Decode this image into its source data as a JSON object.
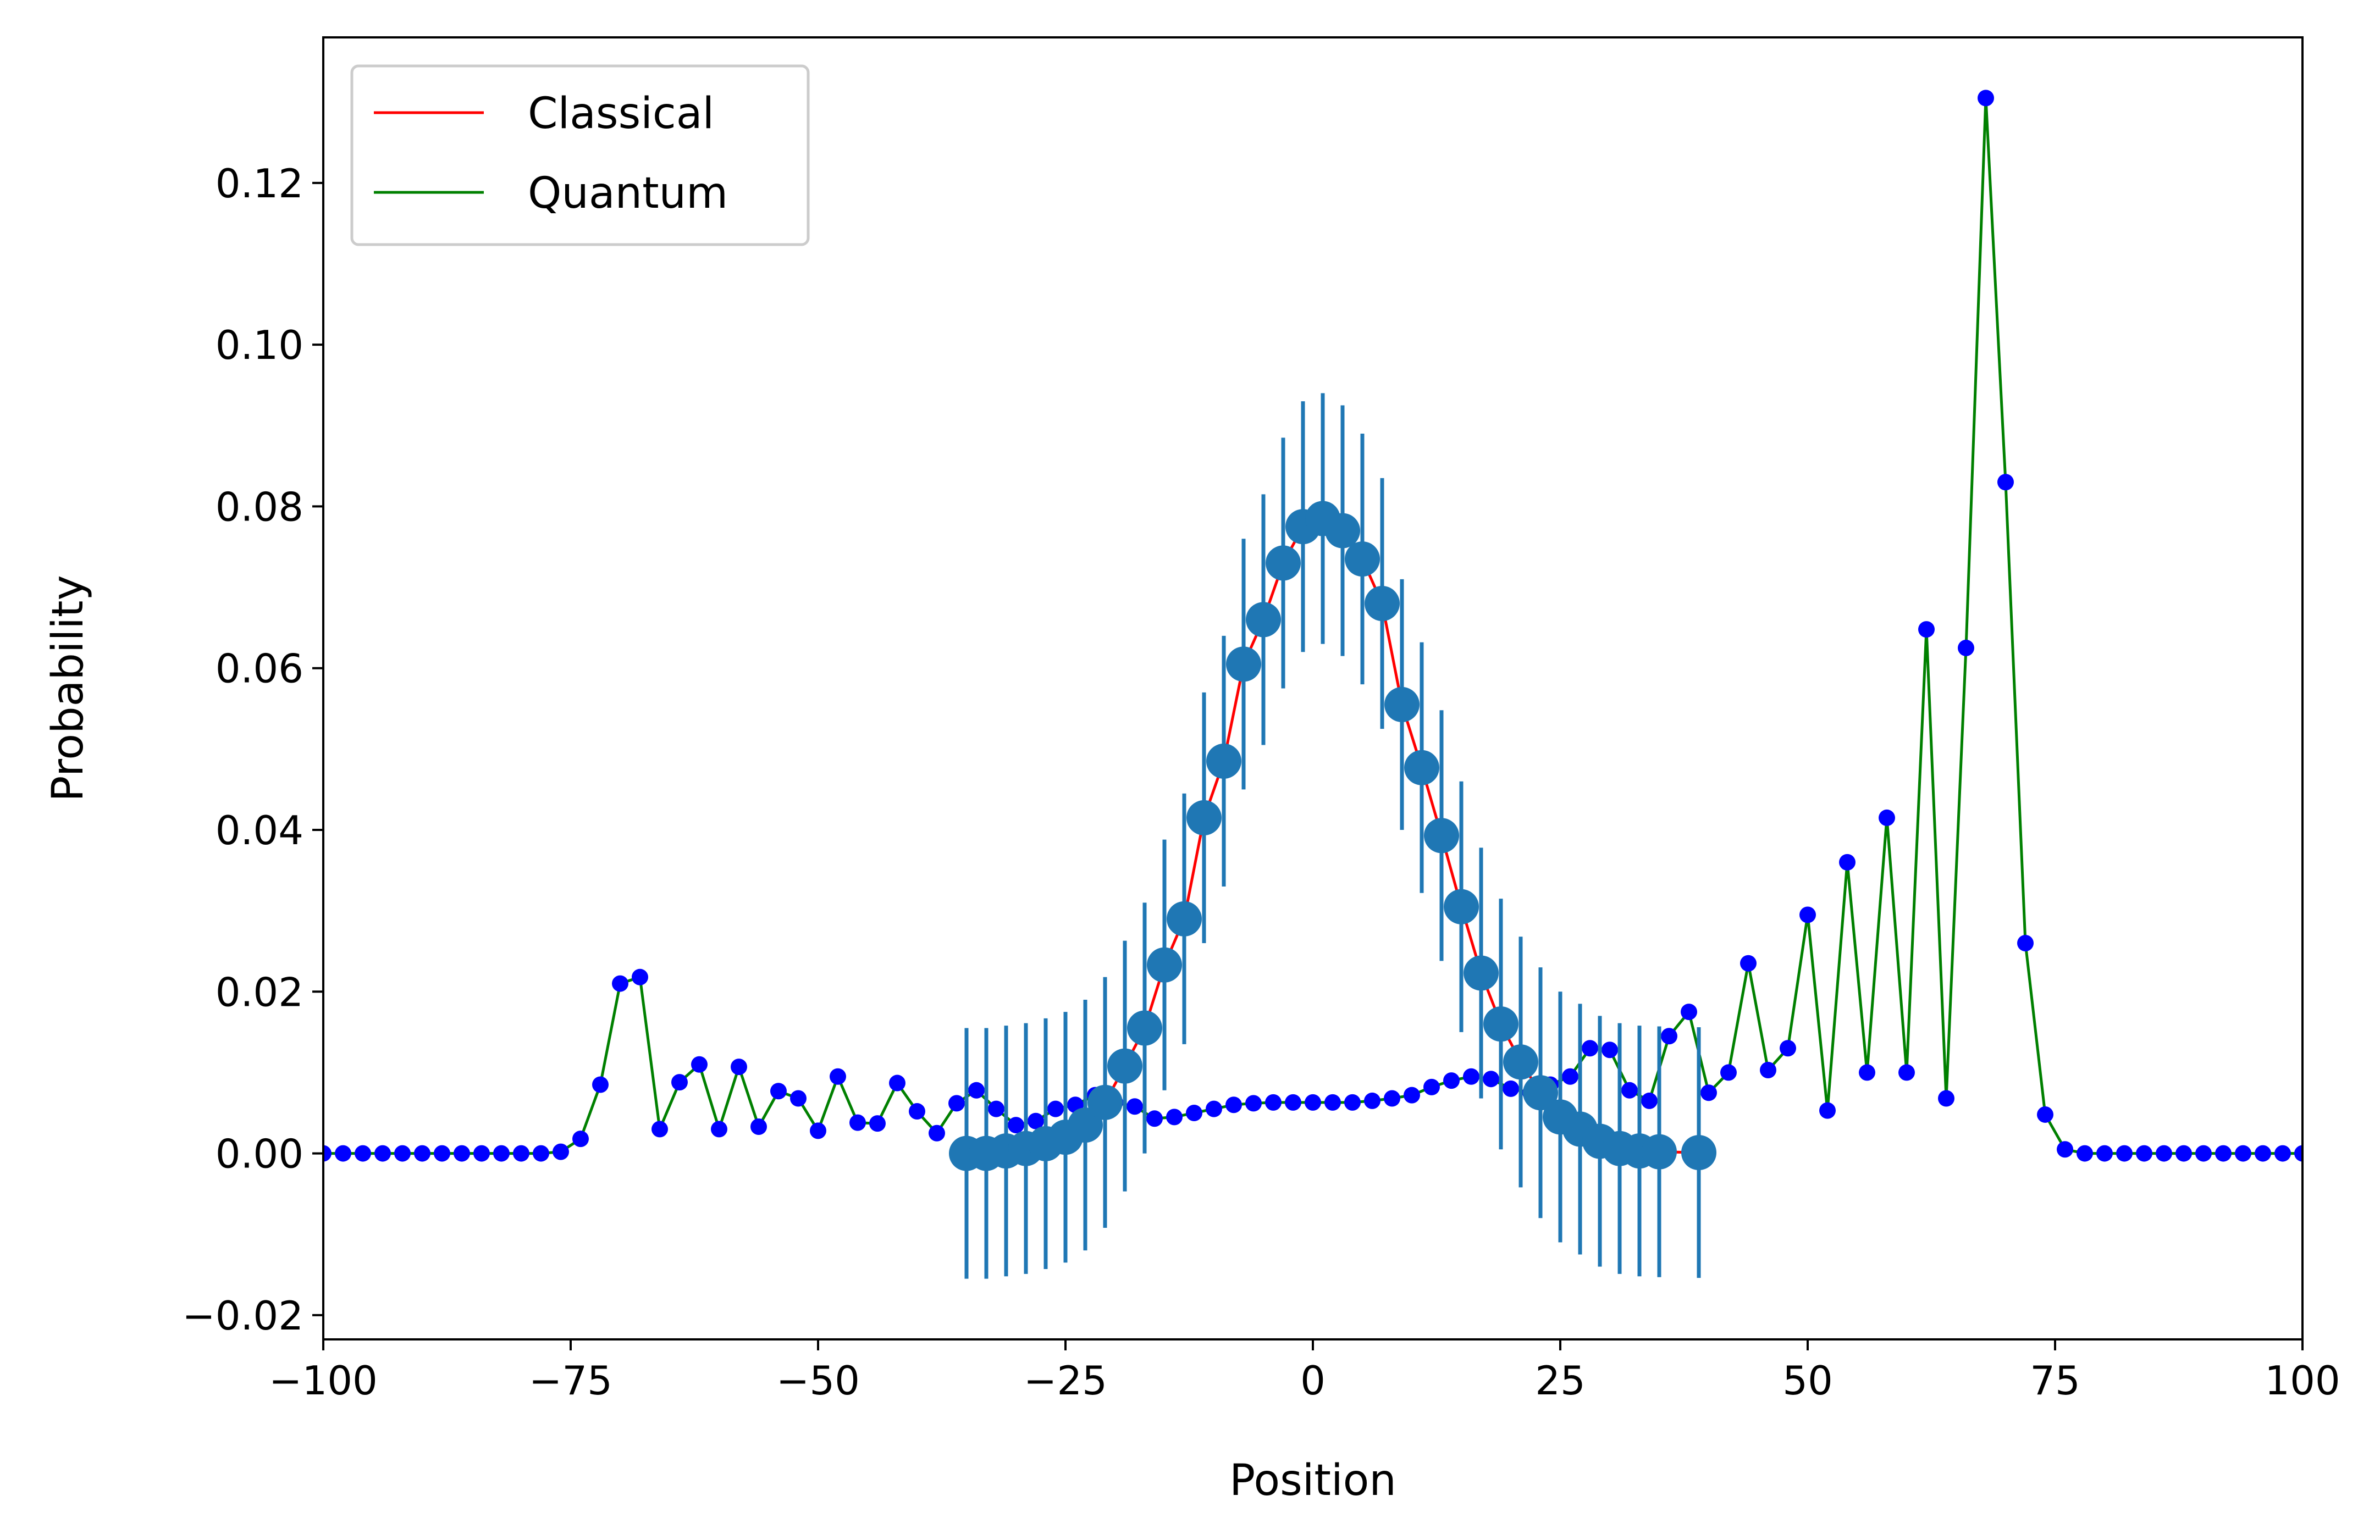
{
  "chart_data": {
    "type": "line",
    "xlabel": "Position",
    "ylabel": "Probability",
    "xlim": [
      -100,
      100
    ],
    "ylim": [
      -0.023,
      0.138
    ],
    "xticks": [
      -100,
      -75,
      -50,
      -25,
      0,
      25,
      50,
      75,
      100
    ],
    "xtick_labels": [
      "−100",
      "−75",
      "−50",
      "−25",
      "0",
      "25",
      "50",
      "75",
      "100"
    ],
    "yticks": [
      -0.02,
      0.0,
      0.02,
      0.04,
      0.06,
      0.08,
      0.1,
      0.12
    ],
    "ytick_labels": [
      "−0.02",
      "0.00",
      "0.02",
      "0.04",
      "0.06",
      "0.08",
      "0.10",
      "0.12"
    ],
    "legend": {
      "position": "top-left",
      "entries": [
        "Classical",
        "Quantum"
      ]
    },
    "series": [
      {
        "name": "Classical",
        "color": "#ff0000",
        "x": [
          -35,
          -33,
          -31,
          -29,
          -27,
          -25,
          -23,
          -21,
          -19,
          -17,
          -15,
          -13,
          -11,
          -9,
          -7,
          -5,
          -3,
          -1,
          1,
          3,
          5,
          7,
          9,
          11,
          13,
          15,
          17,
          19,
          21,
          23,
          25,
          27,
          29,
          31,
          33,
          35,
          39
        ],
        "y": [
          0.0,
          0.0,
          0.0003,
          0.0006,
          0.0012,
          0.002,
          0.0035,
          0.0063,
          0.0108,
          0.0155,
          0.0233,
          0.029,
          0.0415,
          0.0485,
          0.0605,
          0.066,
          0.073,
          0.0775,
          0.0785,
          0.077,
          0.0735,
          0.068,
          0.0555,
          0.0477,
          0.0393,
          0.0305,
          0.0223,
          0.016,
          0.0113,
          0.0075,
          0.0045,
          0.003,
          0.0015,
          0.0006,
          0.0003,
          0.0002,
          0.0001
        ],
        "error": 0.0155,
        "marker_color": "#1f77b4"
      },
      {
        "name": "Quantum",
        "color": "#008000",
        "marker_color": "#0000ff",
        "x": [
          -100,
          -98,
          -96,
          -94,
          -92,
          -90,
          -88,
          -86,
          -84,
          -82,
          -80,
          -78,
          -76,
          -74,
          -72,
          -70,
          -68,
          -66,
          -64,
          -62,
          -60,
          -58,
          -56,
          -54,
          -52,
          -50,
          -48,
          -46,
          -44,
          -42,
          -40,
          -38,
          -36,
          -34,
          -32,
          -30,
          -28,
          -26,
          -24,
          -22,
          -20,
          -18,
          -16,
          -14,
          -12,
          -10,
          -8,
          -6,
          -4,
          -2,
          0,
          2,
          4,
          6,
          8,
          10,
          12,
          14,
          16,
          18,
          20,
          22,
          24,
          26,
          28,
          30,
          32,
          34,
          36,
          38,
          40,
          42,
          44,
          46,
          48,
          50,
          52,
          54,
          56,
          58,
          60,
          62,
          64,
          66,
          68,
          70,
          72,
          74,
          76,
          78,
          80,
          82,
          84,
          86,
          88,
          90,
          92,
          94,
          96,
          98,
          100
        ],
        "y": [
          0,
          0,
          0,
          0,
          0,
          0,
          0,
          0,
          0,
          0,
          0,
          0,
          0.0002,
          0.0018,
          0.0085,
          0.021,
          0.0218,
          0.003,
          0.0088,
          0.011,
          0.003,
          0.0107,
          0.0033,
          0.0077,
          0.0068,
          0.0028,
          0.0095,
          0.0038,
          0.0037,
          0.0087,
          0.0052,
          0.0025,
          0.0062,
          0.0078,
          0.0055,
          0.0035,
          0.004,
          0.0055,
          0.006,
          0.0072,
          0.0063,
          0.0058,
          0.0043,
          0.0045,
          0.005,
          0.0055,
          0.006,
          0.0062,
          0.0063,
          0.0063,
          0.0063,
          0.0063,
          0.0063,
          0.0065,
          0.0068,
          0.0072,
          0.0082,
          0.009,
          0.0095,
          0.0092,
          0.008,
          0.0075,
          0.0085,
          0.0095,
          0.013,
          0.0128,
          0.0078,
          0.0065,
          0.0145,
          0.0175,
          0.0075,
          0.01,
          0.0235,
          0.0103,
          0.013,
          0.0295,
          0.0053,
          0.036,
          0.01,
          0.0415,
          0.01,
          0.0648,
          0.0068,
          0.0625,
          0.1305,
          0.083,
          0.026,
          0.0048,
          0.0005,
          0,
          0,
          0,
          0,
          0,
          0,
          0,
          0,
          0,
          0,
          0,
          0
        ]
      }
    ]
  }
}
